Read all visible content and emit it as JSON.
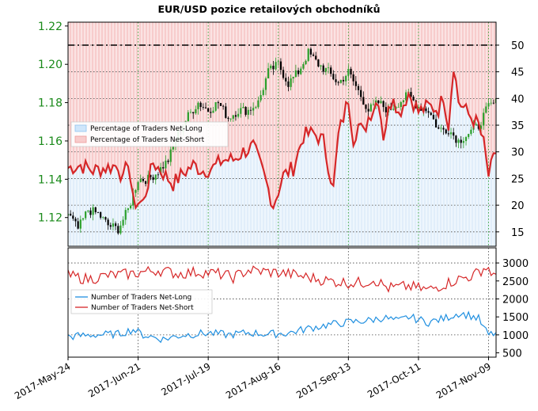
{
  "chart_data": {
    "title": "EUR/USD pozice retailových obchodníků",
    "x_tick_labels": [
      "2017-May-24",
      "2017-Jun-21",
      "2017-Jul-19",
      "2017-Aug-16",
      "2017-Sep-13",
      "2017-Oct-11",
      "2017-Nov-09"
    ],
    "colors": {
      "price_up": "#2ca02c",
      "price_down": "#000000",
      "net_long": "#1f8fe0",
      "net_short": "#d62728",
      "fill_long": "#cfe6fb",
      "fill_short": "#f8cccc",
      "price_axis": "#1a8a1a"
    },
    "panels": [
      {
        "type": "line",
        "name": "price-and-sentiment",
        "left_axis": {
          "ticks": [
            1.12,
            1.14,
            1.16,
            1.18,
            1.2,
            1.22
          ],
          "ylim": [
            1.105,
            1.222
          ]
        },
        "right_axis": {
          "ticks": [
            15,
            20,
            25,
            30,
            35,
            40,
            45,
            50
          ],
          "ylim": [
            12.3,
            54.3
          ]
        },
        "reference_line_right": 50,
        "legend": {
          "placement": "center-left",
          "entries": [
            "Percentage of Traders Net-Long",
            "Percentage of Traders Net-Short"
          ]
        },
        "price_anchors": [
          [
            0,
            1.122
          ],
          [
            4,
            1.114
          ],
          [
            8,
            1.124
          ],
          [
            12,
            1.122
          ],
          [
            16,
            1.116
          ],
          [
            20,
            1.114
          ],
          [
            24,
            1.124
          ],
          [
            28,
            1.14
          ],
          [
            32,
            1.14
          ],
          [
            36,
            1.144
          ],
          [
            40,
            1.15
          ],
          [
            44,
            1.164
          ],
          [
            48,
            1.173
          ],
          [
            52,
            1.18
          ],
          [
            56,
            1.176
          ],
          [
            60,
            1.18
          ],
          [
            64,
            1.172
          ],
          [
            68,
            1.176
          ],
          [
            72,
            1.176
          ],
          [
            76,
            1.18
          ],
          [
            80,
            1.196
          ],
          [
            84,
            1.2
          ],
          [
            88,
            1.19
          ],
          [
            92,
            1.196
          ],
          [
            96,
            1.206
          ],
          [
            100,
            1.2
          ],
          [
            104,
            1.196
          ],
          [
            108,
            1.19
          ],
          [
            112,
            1.196
          ],
          [
            116,
            1.186
          ],
          [
            120,
            1.176
          ],
          [
            124,
            1.18
          ],
          [
            128,
            1.176
          ],
          [
            132,
            1.18
          ],
          [
            136,
            1.184
          ],
          [
            140,
            1.178
          ],
          [
            144,
            1.176
          ],
          [
            148,
            1.166
          ],
          [
            152,
            1.166
          ],
          [
            156,
            1.16
          ],
          [
            160,
            1.164
          ],
          [
            164,
            1.168
          ],
          [
            168,
            1.178
          ],
          [
            171,
            1.18
          ]
        ],
        "short_pct_anchors": [
          [
            0,
            27.0
          ],
          [
            5,
            27.5
          ],
          [
            10,
            26.5
          ],
          [
            15,
            27.0
          ],
          [
            20,
            27.5
          ],
          [
            22,
            24.5
          ],
          [
            24,
            28.5
          ],
          [
            26,
            20.5
          ],
          [
            30,
            20.5
          ],
          [
            34,
            28.0
          ],
          [
            38,
            26.0
          ],
          [
            42,
            24.0
          ],
          [
            46,
            26.0
          ],
          [
            50,
            27.5
          ],
          [
            54,
            26.5
          ],
          [
            58,
            27.0
          ],
          [
            62,
            28.5
          ],
          [
            66,
            28.5
          ],
          [
            70,
            30.0
          ],
          [
            74,
            31.0
          ],
          [
            78,
            26.0
          ],
          [
            82,
            20.0
          ],
          [
            86,
            25.5
          ],
          [
            90,
            27.0
          ],
          [
            94,
            33.0
          ],
          [
            98,
            33.5
          ],
          [
            102,
            32.0
          ],
          [
            106,
            23.0
          ],
          [
            108,
            33.0
          ],
          [
            112,
            40.0
          ],
          [
            114,
            32.5
          ],
          [
            116,
            35.0
          ],
          [
            118,
            33.5
          ],
          [
            120,
            36.5
          ],
          [
            124,
            40.0
          ],
          [
            126,
            33.0
          ],
          [
            128,
            37.5
          ],
          [
            130,
            41.0
          ],
          [
            132,
            37.0
          ],
          [
            136,
            41.0
          ],
          [
            140,
            37.5
          ],
          [
            144,
            38.5
          ],
          [
            148,
            38.0
          ],
          [
            150,
            40.5
          ],
          [
            152,
            35.0
          ],
          [
            154,
            46.5
          ],
          [
            156,
            39.5
          ],
          [
            160,
            37.0
          ],
          [
            164,
            35.0
          ],
          [
            166,
            31.5
          ],
          [
            168,
            25.5
          ],
          [
            171,
            30.0
          ]
        ]
      },
      {
        "type": "line",
        "name": "trader-counts",
        "right_axis": {
          "ticks": [
            500,
            1000,
            1500,
            2000,
            2500,
            3000
          ],
          "ylim": [
            380,
            3420
          ]
        },
        "legend": {
          "placement": "center-left",
          "entries": [
            "Number of Traders Net-Long",
            "Number of Traders Net-Short"
          ]
        },
        "net_long_anchors": [
          [
            0,
            950
          ],
          [
            10,
            1000
          ],
          [
            20,
            1020
          ],
          [
            26,
            1150
          ],
          [
            30,
            1000
          ],
          [
            38,
            880
          ],
          [
            46,
            1000
          ],
          [
            56,
            1050
          ],
          [
            64,
            1000
          ],
          [
            72,
            1060
          ],
          [
            80,
            1020
          ],
          [
            88,
            1050
          ],
          [
            96,
            1180
          ],
          [
            104,
            1280
          ],
          [
            112,
            1350
          ],
          [
            120,
            1400
          ],
          [
            126,
            1480
          ],
          [
            132,
            1380
          ],
          [
            136,
            1500
          ],
          [
            144,
            1350
          ],
          [
            150,
            1450
          ],
          [
            156,
            1600
          ],
          [
            160,
            1550
          ],
          [
            164,
            1450
          ],
          [
            166,
            1200
          ],
          [
            168,
            1000
          ],
          [
            171,
            1050
          ]
        ],
        "net_short_anchors": [
          [
            0,
            2650
          ],
          [
            8,
            2550
          ],
          [
            16,
            2650
          ],
          [
            26,
            2700
          ],
          [
            30,
            2750
          ],
          [
            36,
            2800
          ],
          [
            44,
            2700
          ],
          [
            52,
            2750
          ],
          [
            60,
            2700
          ],
          [
            66,
            2600
          ],
          [
            72,
            2800
          ],
          [
            80,
            2750
          ],
          [
            88,
            2700
          ],
          [
            96,
            2600
          ],
          [
            104,
            2500
          ],
          [
            112,
            2450
          ],
          [
            118,
            2450
          ],
          [
            122,
            2550
          ],
          [
            128,
            2300
          ],
          [
            136,
            2350
          ],
          [
            144,
            2250
          ],
          [
            150,
            2400
          ],
          [
            156,
            2550
          ],
          [
            162,
            2650
          ],
          [
            166,
            2850
          ],
          [
            168,
            2850
          ],
          [
            171,
            2550
          ]
        ]
      }
    ]
  }
}
